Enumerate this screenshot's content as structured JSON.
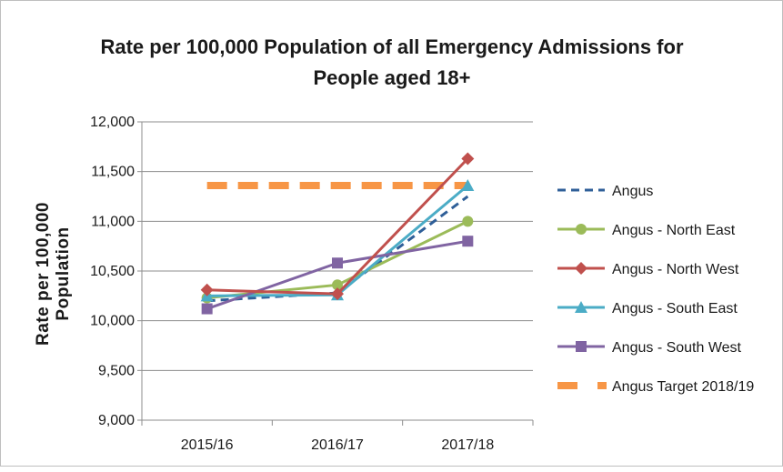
{
  "chart_data": {
    "type": "line",
    "title_lines": [
      "Rate per 100,000 Population of all Emergency Admissions for",
      "People aged 18+"
    ],
    "ylabel_lines": [
      "Rate per 100,000",
      "Population"
    ],
    "xlabel": "",
    "categories": [
      "2015/16",
      "2016/17",
      "2017/18"
    ],
    "ylim": [
      9000,
      12000
    ],
    "yticks": [
      9000,
      9500,
      10000,
      10500,
      11000,
      11500,
      12000
    ],
    "ytick_labels": [
      "9,000",
      "9,500",
      "10,000",
      "10,500",
      "11,000",
      "11,500",
      "12,000"
    ],
    "grid": "horizontal",
    "legend_position": "right",
    "series": [
      {
        "name": "Angus",
        "values": [
          10200,
          10280,
          11250
        ],
        "color": "#2f5f98",
        "dash": "dashed",
        "marker": "none"
      },
      {
        "name": "Angus - North East",
        "values": [
          10230,
          10360,
          11000
        ],
        "color": "#9bbb59",
        "dash": "solid",
        "marker": "circle"
      },
      {
        "name": "Angus - North West",
        "values": [
          10310,
          10270,
          11630
        ],
        "color": "#c0504d",
        "dash": "solid",
        "marker": "diamond"
      },
      {
        "name": "Angus - South East",
        "values": [
          10250,
          10260,
          11360
        ],
        "color": "#4bacc6",
        "dash": "solid",
        "marker": "triangle"
      },
      {
        "name": "Angus - South West",
        "values": [
          10120,
          10580,
          10800
        ],
        "color": "#8064a2",
        "dash": "solid",
        "marker": "square"
      },
      {
        "name": "Angus Target 2018/19",
        "values": [
          11360,
          11360,
          11360
        ],
        "color": "#f79646",
        "dash": "target",
        "marker": "none"
      }
    ]
  }
}
